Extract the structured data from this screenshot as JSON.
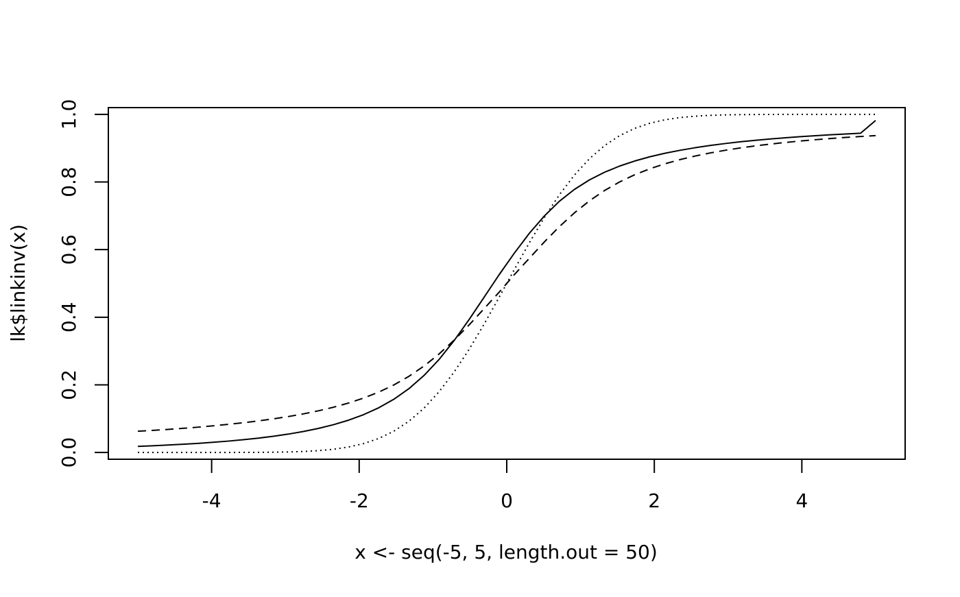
{
  "chart_data": {
    "type": "line",
    "title": "",
    "xlabel": "x <- seq(-5, 5, length.out = 50)",
    "ylabel": "lk$linkinv(x)",
    "xlim": [
      -5.4,
      5.4
    ],
    "ylim": [
      -0.02,
      1.02
    ],
    "x_ticks": [
      -4,
      -2,
      0,
      2,
      4
    ],
    "x_tick_labels": [
      "-4",
      "-2",
      "0",
      "2",
      "4"
    ],
    "y_ticks": [
      0.0,
      0.2,
      0.4,
      0.6,
      0.8,
      1.0
    ],
    "y_tick_labels": [
      "0.0",
      "0.2",
      "0.4",
      "0.6",
      "0.8",
      "1.0"
    ],
    "grid": false,
    "legend": "none",
    "x": [
      -5,
      -4.795918,
      -4.591837,
      -4.387755,
      -4.183673,
      -3.979592,
      -3.77551,
      -3.571429,
      -3.367347,
      -3.163265,
      -2.959184,
      -2.755102,
      -2.55102,
      -2.346939,
      -2.142857,
      -1.938776,
      -1.734694,
      -1.530612,
      -1.326531,
      -1.122449,
      -0.918367,
      -0.714286,
      -0.510204,
      -0.306122,
      -0.102041,
      0.102041,
      0.306122,
      0.510204,
      0.714286,
      0.918367,
      1.122449,
      1.326531,
      1.530612,
      1.734694,
      1.938776,
      2.142857,
      2.346939,
      2.55102,
      2.755102,
      2.959184,
      3.163265,
      3.367347,
      3.571429,
      3.77551,
      3.979592,
      4.183673,
      4.387755,
      4.591837,
      4.795918,
      5
    ],
    "series": [
      {
        "line_style": "solid",
        "values": [
          0.018,
          0.0199,
          0.022,
          0.0244,
          0.027,
          0.0301,
          0.0336,
          0.0377,
          0.0424,
          0.0479,
          0.0544,
          0.0621,
          0.0712,
          0.0823,
          0.0956,
          0.112,
          0.1322,
          0.1573,
          0.1886,
          0.2275,
          0.2748,
          0.3306,
          0.3931,
          0.4593,
          0.5261,
          0.5893,
          0.6482,
          0.6996,
          0.7431,
          0.7782,
          0.8064,
          0.8289,
          0.8472,
          0.8621,
          0.8745,
          0.8849,
          0.8937,
          0.9013,
          0.9079,
          0.9137,
          0.9188,
          0.9232,
          0.9272,
          0.9308,
          0.934,
          0.937,
          0.9396,
          0.942,
          0.9443,
          0.982
        ]
      },
      {
        "line_style": "dashed",
        "values": [
          0.0628,
          0.0654,
          0.0683,
          0.0714,
          0.0749,
          0.0788,
          0.0831,
          0.0879,
          0.0933,
          0.0994,
          0.1063,
          0.1142,
          0.1233,
          0.1339,
          0.1463,
          0.161,
          0.1786,
          0.1997,
          0.2251,
          0.2555,
          0.2911,
          0.3319,
          0.3772,
          0.4256,
          0.4742,
          0.5258,
          0.5744,
          0.6228,
          0.6681,
          0.7089,
          0.7445,
          0.7749,
          0.8003,
          0.8214,
          0.839,
          0.8537,
          0.8661,
          0.8767,
          0.8858,
          0.8937,
          0.9006,
          0.9067,
          0.9121,
          0.9169,
          0.9212,
          0.9251,
          0.9286,
          0.9317,
          0.9346,
          0.9372
        ]
      },
      {
        "line_style": "dotted",
        "values": [
          0.0,
          0.0,
          0.0,
          0.0,
          0.0,
          0.0,
          0.0001,
          0.0002,
          0.0004,
          0.0008,
          0.0015,
          0.0029,
          0.0054,
          0.0095,
          0.0161,
          0.0263,
          0.0414,
          0.0629,
          0.0923,
          0.1308,
          0.1793,
          0.2376,
          0.3049,
          0.3798,
          0.4594,
          0.5406,
          0.6202,
          0.6951,
          0.7624,
          0.8207,
          0.8692,
          0.9077,
          0.9371,
          0.9586,
          0.9737,
          0.9839,
          0.9905,
          0.9946,
          0.9971,
          0.9985,
          0.9992,
          0.9996,
          0.9998,
          0.9999,
          1.0,
          1.0,
          1.0,
          1.0,
          1.0,
          1.0
        ]
      }
    ]
  }
}
